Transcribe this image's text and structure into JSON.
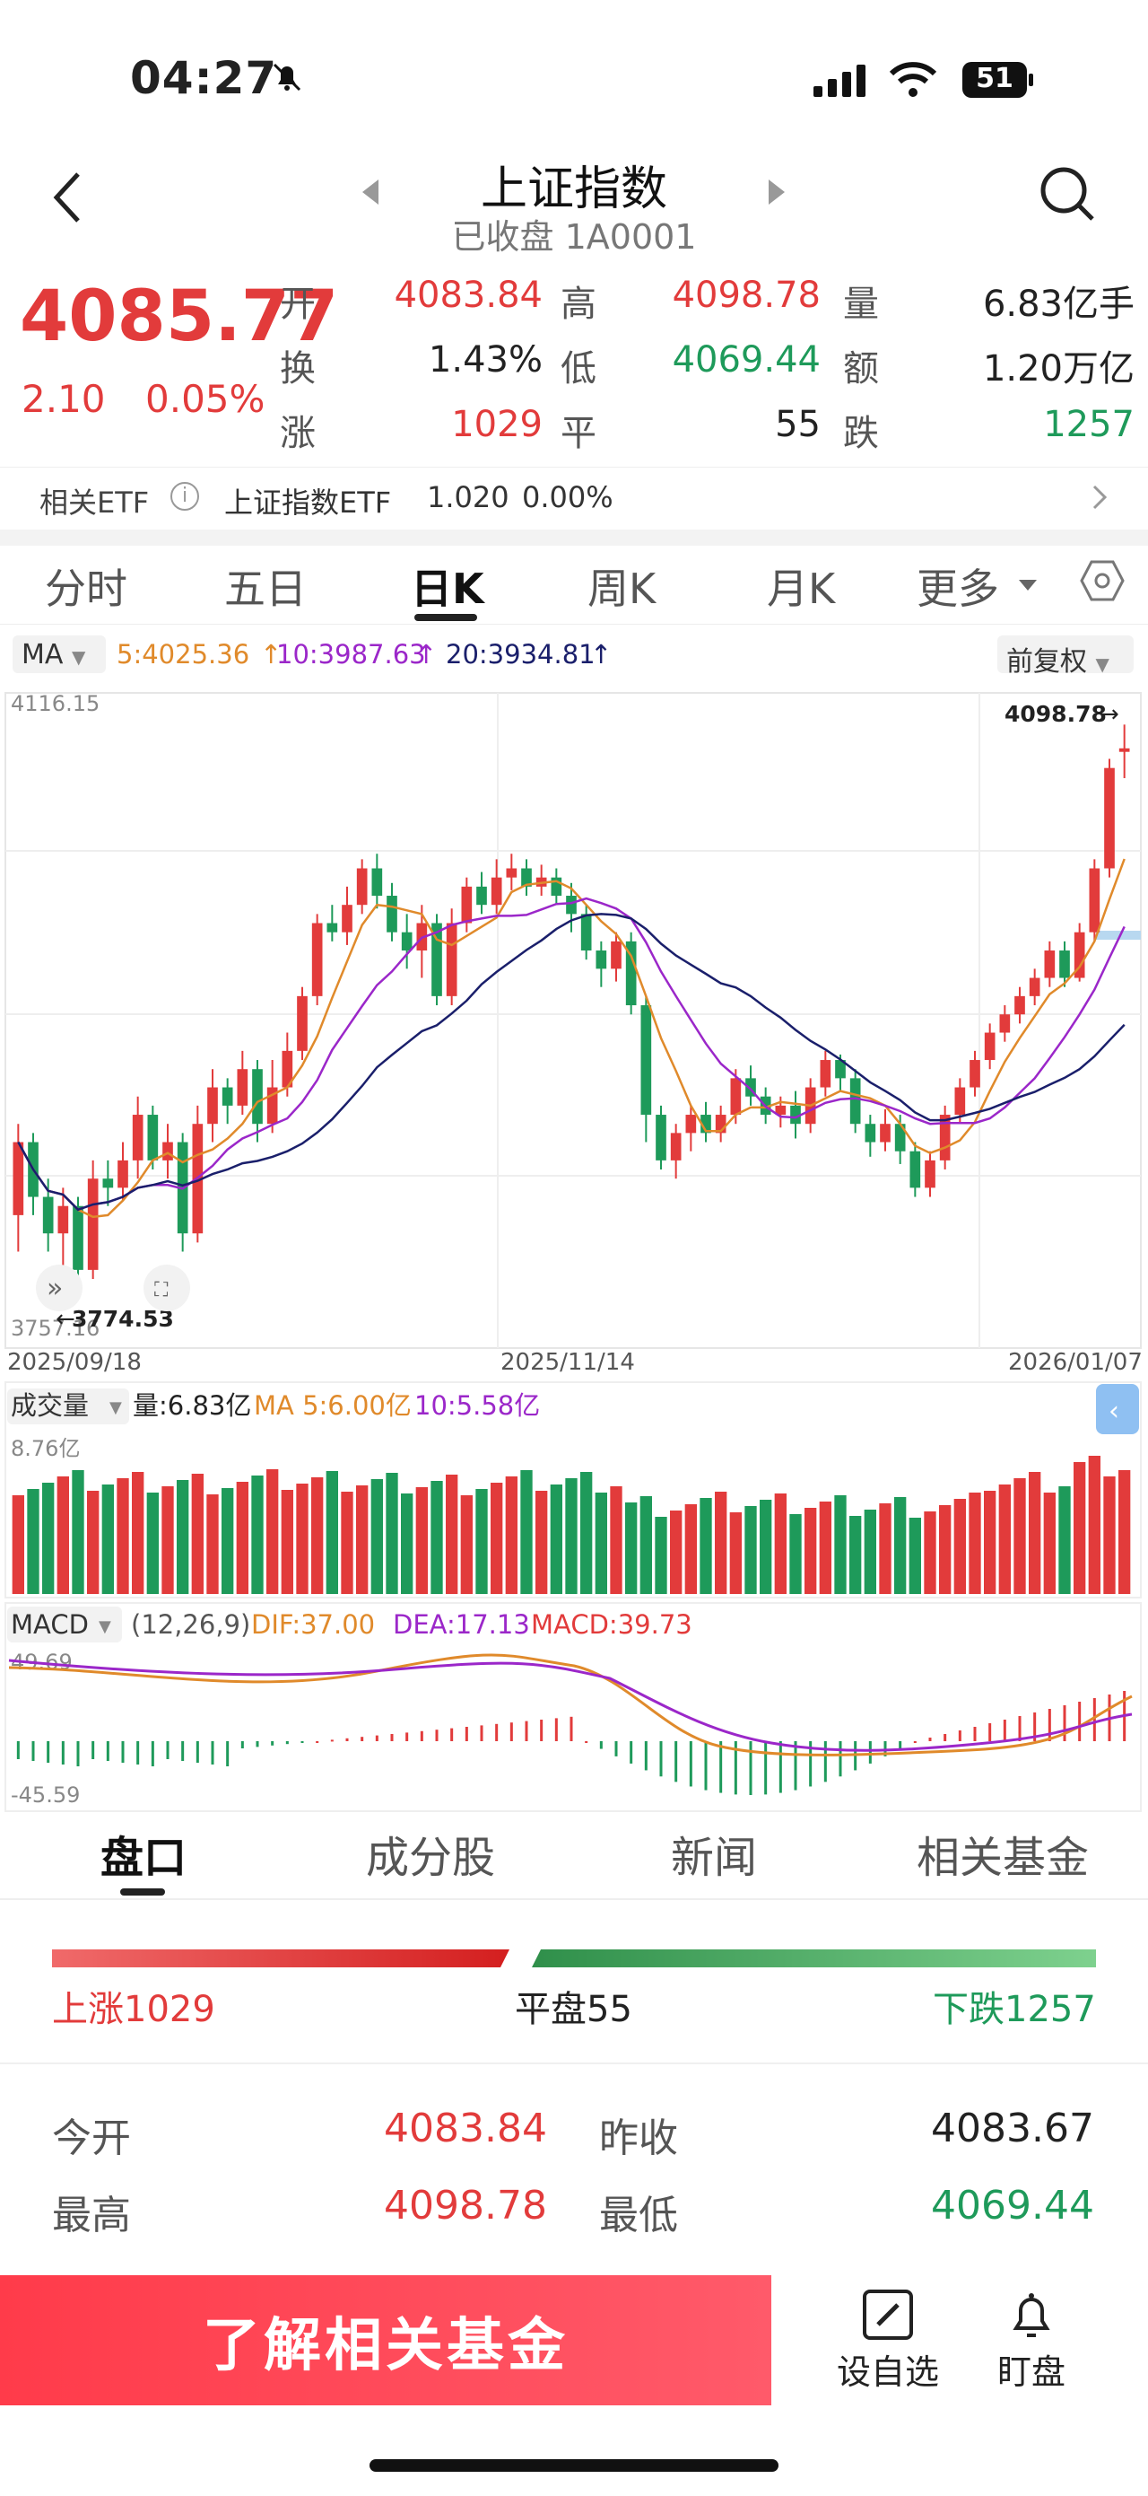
{
  "status": {
    "time": "04:27",
    "battery": "51"
  },
  "header": {
    "title": "上证指数",
    "subtitle": "已收盘 1A0001"
  },
  "quote": {
    "price": "4085.77",
    "change": "2.10",
    "change_pct": "0.05%",
    "open_label": "开",
    "open": "4083.84",
    "high_label": "高",
    "high": "4098.78",
    "volume_label": "量",
    "volume": "6.83亿手",
    "turnover_label": "换",
    "turnover": "1.43%",
    "low_label": "低",
    "low": "4069.44",
    "amount_label": "额",
    "amount": "1.20万亿",
    "up_label": "涨",
    "up": "1029",
    "flat_label": "平",
    "flat": "55",
    "down_label": "跌",
    "down": "1257"
  },
  "etf": {
    "label": "相关ETF",
    "name": "上证指数ETF",
    "price": "1.020",
    "pct": "0.00%"
  },
  "tabs": [
    "分时",
    "五日",
    "日K",
    "周K",
    "月K",
    "更多"
  ],
  "ma_row": {
    "type": "MA",
    "ma5": "5:4025.36",
    "ma10": "10:3987.63",
    "ma20": "20:3934.81",
    "adjust": "前复权"
  },
  "kline": {
    "y_top": "4116.15",
    "y_bottom": "3757.16",
    "high_marker": "4098.78",
    "low_marker": "3774.53",
    "date_start": "2025/09/18",
    "date_mid": "2025/11/14",
    "date_end": "2026/01/07"
  },
  "volume": {
    "label": "成交量",
    "value": "量:6.83亿",
    "ma5": "MA 5:6.00亿",
    "ma10": "10:5.58亿",
    "y_top": "8.76亿"
  },
  "macd": {
    "label": "MACD",
    "params": "(12,26,9)",
    "dif": "DIF:37.00",
    "dea": "DEA:17.13",
    "macd": "MACD:39.73",
    "y_top": "49.69",
    "y_bottom": "-45.59"
  },
  "bottom_tabs": [
    "盘口",
    "成分股",
    "新闻",
    "相关基金"
  ],
  "breadth": {
    "up": "上涨1029",
    "flat": "平盘55",
    "down": "下跌1257"
  },
  "stats": {
    "open_label": "今开",
    "open": "4083.84",
    "prev_label": "昨收",
    "prev": "4083.67",
    "high_label": "最高",
    "high": "4098.78",
    "low_label": "最低",
    "low": "4069.44"
  },
  "bottom_bar": {
    "fund_button": "了解相关基金",
    "watch": "设自选",
    "monitor": "盯盘"
  },
  "chart_data": {
    "type": "candlestick",
    "title": "",
    "x_start": "2025/09/18",
    "x_end": "2026/01/07",
    "y_range": [
      3757.16,
      4116.15
    ],
    "candles": [
      [
        3830,
        3870,
        3810,
        3880
      ],
      [
        3870,
        3840,
        3830,
        3875
      ],
      [
        3840,
        3820,
        3810,
        3850
      ],
      [
        3820,
        3835,
        3800,
        3845
      ],
      [
        3835,
        3800,
        3795,
        3840
      ],
      [
        3800,
        3850,
        3795,
        3860
      ],
      [
        3850,
        3845,
        3835,
        3860
      ],
      [
        3845,
        3860,
        3838,
        3870
      ],
      [
        3860,
        3885,
        3850,
        3895
      ],
      [
        3885,
        3860,
        3855,
        3890
      ],
      [
        3860,
        3870,
        3850,
        3880
      ],
      [
        3870,
        3820,
        3810,
        3875
      ],
      [
        3820,
        3880,
        3815,
        3890
      ],
      [
        3880,
        3900,
        3870,
        3910
      ],
      [
        3900,
        3890,
        3880,
        3905
      ],
      [
        3890,
        3910,
        3885,
        3920
      ],
      [
        3910,
        3880,
        3870,
        3915
      ],
      [
        3880,
        3900,
        3875,
        3915
      ],
      [
        3900,
        3920,
        3895,
        3930
      ],
      [
        3920,
        3950,
        3915,
        3955
      ],
      [
        3950,
        3990,
        3945,
        3995
      ],
      [
        3990,
        3985,
        3980,
        4000
      ],
      [
        3985,
        4000,
        3978,
        4010
      ],
      [
        4000,
        4020,
        3995,
        4025
      ],
      [
        4020,
        4005,
        3998,
        4028
      ],
      [
        4005,
        3985,
        3980,
        4012
      ],
      [
        3985,
        3975,
        3965,
        3995
      ],
      [
        3975,
        3990,
        3960,
        4000
      ],
      [
        3990,
        3950,
        3945,
        3995
      ],
      [
        3950,
        3990,
        3945,
        3998
      ],
      [
        3990,
        4010,
        3985,
        4015
      ],
      [
        4010,
        4000,
        3995,
        4018
      ],
      [
        4000,
        4015,
        3995,
        4025
      ],
      [
        4015,
        4020,
        4008,
        4028
      ],
      [
        4020,
        4010,
        4005,
        4025
      ],
      [
        4010,
        4015,
        4005,
        4022
      ],
      [
        4015,
        4005,
        4000,
        4020
      ],
      [
        4005,
        3995,
        3985,
        4012
      ],
      [
        3995,
        3975,
        3970,
        4000
      ],
      [
        3975,
        3965,
        3955,
        3980
      ],
      [
        3965,
        3980,
        3958,
        3985
      ],
      [
        3980,
        3945,
        3940,
        3985
      ],
      [
        3945,
        3885,
        3870,
        3950
      ],
      [
        3885,
        3860,
        3855,
        3890
      ],
      [
        3860,
        3875,
        3850,
        3880
      ],
      [
        3875,
        3885,
        3865,
        3890
      ],
      [
        3885,
        3875,
        3870,
        3892
      ],
      [
        3875,
        3885,
        3870,
        3890
      ],
      [
        3885,
        3905,
        3880,
        3910
      ],
      [
        3905,
        3895,
        3890,
        3912
      ],
      [
        3895,
        3885,
        3880,
        3900
      ],
      [
        3885,
        3890,
        3878,
        3895
      ],
      [
        3890,
        3880,
        3872,
        3898
      ],
      [
        3880,
        3900,
        3875,
        3905
      ],
      [
        3900,
        3915,
        3895,
        3920
      ],
      [
        3915,
        3905,
        3898,
        3918
      ],
      [
        3905,
        3880,
        3875,
        3910
      ],
      [
        3880,
        3870,
        3862,
        3885
      ],
      [
        3870,
        3880,
        3865,
        3888
      ],
      [
        3880,
        3865,
        3858,
        3885
      ],
      [
        3865,
        3845,
        3840,
        3870
      ],
      [
        3845,
        3860,
        3840,
        3865
      ],
      [
        3860,
        3885,
        3855,
        3890
      ],
      [
        3885,
        3900,
        3880,
        3905
      ],
      [
        3900,
        3915,
        3895,
        3920
      ],
      [
        3915,
        3930,
        3910,
        3935
      ],
      [
        3930,
        3940,
        3925,
        3945
      ],
      [
        3940,
        3950,
        3935,
        3955
      ],
      [
        3950,
        3960,
        3945,
        3965
      ],
      [
        3960,
        3975,
        3955,
        3980
      ],
      [
        3975,
        3960,
        3955,
        3980
      ],
      [
        3960,
        3985,
        3958,
        3990
      ],
      [
        3985,
        4020,
        3980,
        4025
      ],
      [
        4020,
        4075,
        4015,
        4080
      ],
      [
        4083.84,
        4085.77,
        4069.44,
        4098.78
      ]
    ]
  }
}
